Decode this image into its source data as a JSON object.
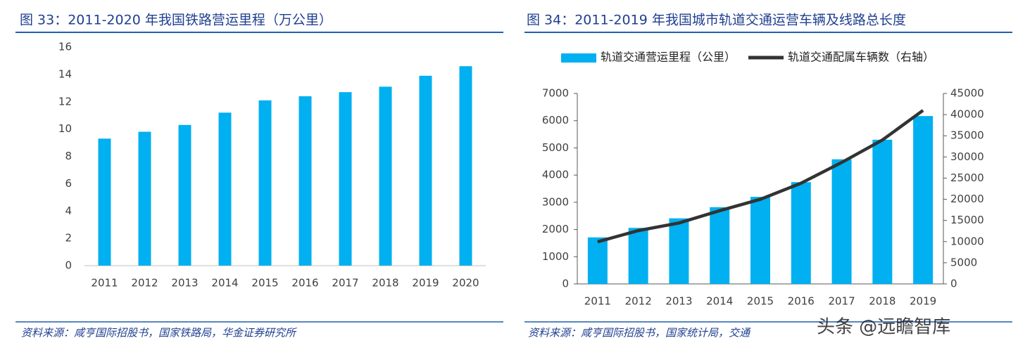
{
  "chart_data": [
    {
      "type": "bar",
      "title": "图 33：2011-2020 年我国铁路营运里程（万公里）",
      "categories": [
        "2011",
        "2012",
        "2013",
        "2014",
        "2015",
        "2016",
        "2017",
        "2018",
        "2019",
        "2020"
      ],
      "values": [
        9.3,
        9.8,
        10.3,
        11.2,
        12.1,
        12.4,
        12.7,
        13.1,
        13.9,
        14.6
      ],
      "color": "#00b0f0",
      "ylim": [
        0,
        16
      ],
      "yticks": [
        0,
        2,
        4,
        6,
        8,
        10,
        12,
        14,
        16
      ],
      "source": "资料来源：咸亨国际招股书，国家铁路局，华金证券研究所"
    },
    {
      "type": "combo",
      "title": "图 34：2011-2019 年我国城市轨道交通运营车辆及线路总长度",
      "categories": [
        "2011",
        "2012",
        "2013",
        "2014",
        "2015",
        "2016",
        "2017",
        "2018",
        "2019"
      ],
      "series": [
        {
          "name": "轨道交通营运里程（公里）",
          "type": "bar",
          "color": "#00b0f0",
          "values": [
            1710,
            2060,
            2410,
            2820,
            3200,
            3740,
            4580,
            5300,
            6170
          ]
        },
        {
          "name": "轨道交通配属车辆数（右轴）",
          "type": "line",
          "axis": "y2",
          "color": "#333333",
          "values": [
            9950,
            12600,
            14400,
            17300,
            20000,
            23800,
            28700,
            34000,
            41000
          ]
        }
      ],
      "ylim": [
        0,
        7000
      ],
      "yticks": [
        0,
        1000,
        2000,
        3000,
        4000,
        5000,
        6000,
        7000
      ],
      "y2lim": [
        0,
        45000
      ],
      "y2ticks": [
        0,
        5000,
        10000,
        15000,
        20000,
        25000,
        30000,
        35000,
        40000,
        45000
      ],
      "legend": "top",
      "source": "资料来源：咸亨国际招股书，国家统计局，交通"
    }
  ],
  "watermark": "头条 @远瞻智库"
}
